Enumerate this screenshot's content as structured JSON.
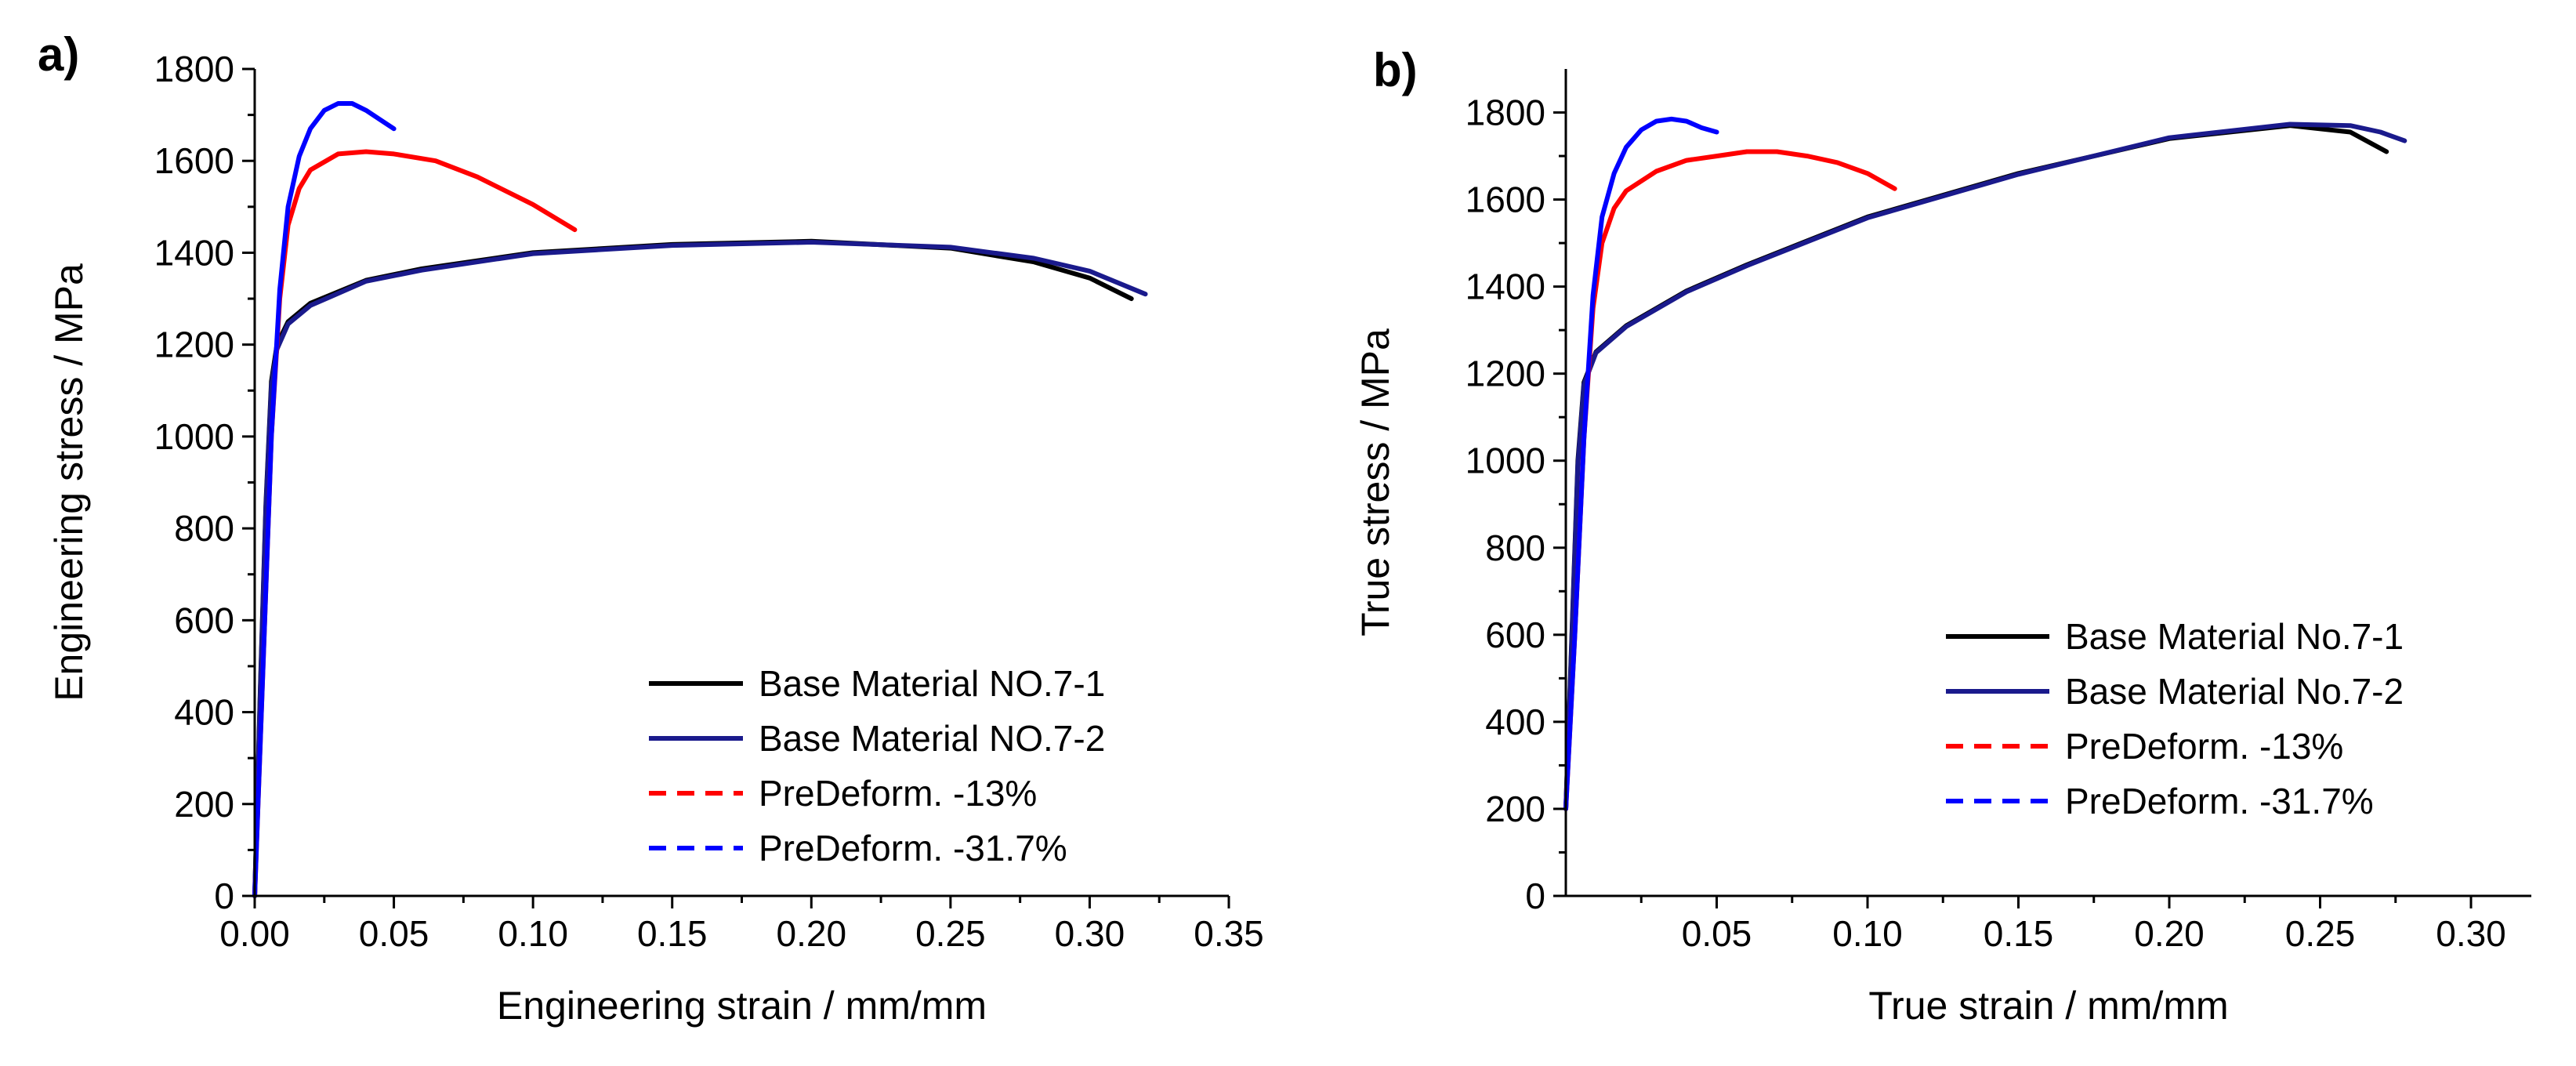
{
  "chart_data": [
    {
      "panel_label": "a)",
      "type": "line",
      "title": "",
      "xlabel": "Engineering strain / mm/mm",
      "ylabel": "Engineering stress / MPa",
      "xlim": [
        0,
        0.35
      ],
      "ylim": [
        0,
        1800
      ],
      "xticks": [
        0,
        0.05,
        0.1,
        0.15,
        0.2,
        0.25,
        0.3,
        0.35
      ],
      "xtick_labels": [
        "0.00",
        "0.05",
        "0.10",
        "0.15",
        "0.20",
        "0.25",
        "0.30",
        "0.35"
      ],
      "yticks": [
        0,
        200,
        400,
        600,
        800,
        1000,
        1200,
        1400,
        1600,
        1800
      ],
      "ytick_labels": [
        "0",
        "200",
        "400",
        "600",
        "800",
        "1000",
        "1200",
        "1400",
        "1600",
        "1800"
      ],
      "grid": false,
      "legend_position": "bottom-right",
      "series": [
        {
          "name": "Base Material NO.7-1",
          "color": "#000000",
          "dash": "solid",
          "x": [
            0,
            0.002,
            0.004,
            0.006,
            0.008,
            0.012,
            0.02,
            0.04,
            0.06,
            0.1,
            0.15,
            0.2,
            0.25,
            0.28,
            0.3,
            0.315
          ],
          "y": [
            0,
            450,
            850,
            1120,
            1200,
            1250,
            1290,
            1340,
            1365,
            1400,
            1418,
            1425,
            1410,
            1380,
            1345,
            1300
          ]
        },
        {
          "name": "Base Material NO.7-2",
          "color": "#1a1a8c",
          "dash": "solid",
          "x": [
            0,
            0.002,
            0.004,
            0.006,
            0.008,
            0.012,
            0.02,
            0.04,
            0.06,
            0.1,
            0.15,
            0.2,
            0.25,
            0.28,
            0.3,
            0.32
          ],
          "y": [
            0,
            440,
            840,
            1110,
            1190,
            1245,
            1285,
            1338,
            1362,
            1398,
            1416,
            1423,
            1412,
            1388,
            1360,
            1310
          ]
        },
        {
          "name": "PreDeform. -13%",
          "color": "#ff0000",
          "dash": "dashed",
          "x": [
            0,
            0.003,
            0.006,
            0.009,
            0.012,
            0.016,
            0.02,
            0.03,
            0.04,
            0.05,
            0.065,
            0.08,
            0.1,
            0.115
          ],
          "y": [
            0,
            500,
            1000,
            1300,
            1460,
            1540,
            1580,
            1615,
            1620,
            1615,
            1600,
            1565,
            1505,
            1450
          ]
        },
        {
          "name": "PreDeform. -31.7%",
          "color": "#0000ff",
          "dash": "dashed",
          "x": [
            0,
            0.003,
            0.006,
            0.009,
            0.012,
            0.016,
            0.02,
            0.025,
            0.03,
            0.035,
            0.04,
            0.045,
            0.05
          ],
          "y": [
            0,
            500,
            1000,
            1320,
            1500,
            1610,
            1670,
            1710,
            1725,
            1725,
            1710,
            1690,
            1670
          ]
        }
      ]
    },
    {
      "panel_label": "b)",
      "type": "line",
      "title": "",
      "xlabel": "True strain / mm/mm",
      "ylabel": "True stress / MPa",
      "xlim": [
        0,
        0.32
      ],
      "ylim": [
        0,
        1900
      ],
      "xticks": [
        0.05,
        0.1,
        0.15,
        0.2,
        0.25,
        0.3
      ],
      "xtick_labels": [
        "0.05",
        "0.10",
        "0.15",
        "0.20",
        "0.25",
        "0.30"
      ],
      "yticks": [
        0,
        200,
        400,
        600,
        800,
        1000,
        1200,
        1400,
        1600,
        1800
      ],
      "ytick_labels": [
        "0",
        "200",
        "400",
        "600",
        "800",
        "1000",
        "1200",
        "1400",
        "1600",
        "1800"
      ],
      "grid": false,
      "legend_position": "bottom-right",
      "series": [
        {
          "name": "Base Material No.7-1",
          "color": "#000000",
          "dash": "solid",
          "x": [
            0,
            0.002,
            0.004,
            0.006,
            0.01,
            0.02,
            0.04,
            0.06,
            0.1,
            0.15,
            0.2,
            0.24,
            0.26,
            0.272
          ],
          "y": [
            200,
            600,
            1000,
            1180,
            1250,
            1310,
            1390,
            1450,
            1560,
            1660,
            1740,
            1770,
            1755,
            1710
          ]
        },
        {
          "name": "Base Material No.7-2",
          "color": "#1a1a8c",
          "dash": "solid",
          "x": [
            0,
            0.002,
            0.004,
            0.006,
            0.01,
            0.02,
            0.04,
            0.06,
            0.1,
            0.15,
            0.2,
            0.24,
            0.26,
            0.27,
            0.278
          ],
          "y": [
            200,
            590,
            990,
            1175,
            1248,
            1308,
            1388,
            1448,
            1558,
            1658,
            1742,
            1773,
            1770,
            1755,
            1735
          ]
        },
        {
          "name": "PreDeform. -13%",
          "color": "#ff0000",
          "dash": "dashed",
          "x": [
            0,
            0.003,
            0.006,
            0.009,
            0.012,
            0.016,
            0.02,
            0.03,
            0.04,
            0.05,
            0.06,
            0.07,
            0.08,
            0.09,
            0.1,
            0.109
          ],
          "y": [
            200,
            600,
            1050,
            1350,
            1500,
            1580,
            1620,
            1665,
            1690,
            1700,
            1710,
            1710,
            1700,
            1685,
            1660,
            1625
          ]
        },
        {
          "name": "PreDeform. -31.7%",
          "color": "#0000ff",
          "dash": "dashed",
          "x": [
            0,
            0.003,
            0.006,
            0.009,
            0.012,
            0.016,
            0.02,
            0.025,
            0.03,
            0.035,
            0.04,
            0.045,
            0.05
          ],
          "y": [
            200,
            600,
            1050,
            1380,
            1560,
            1660,
            1720,
            1760,
            1780,
            1785,
            1780,
            1765,
            1755
          ]
        }
      ]
    }
  ]
}
